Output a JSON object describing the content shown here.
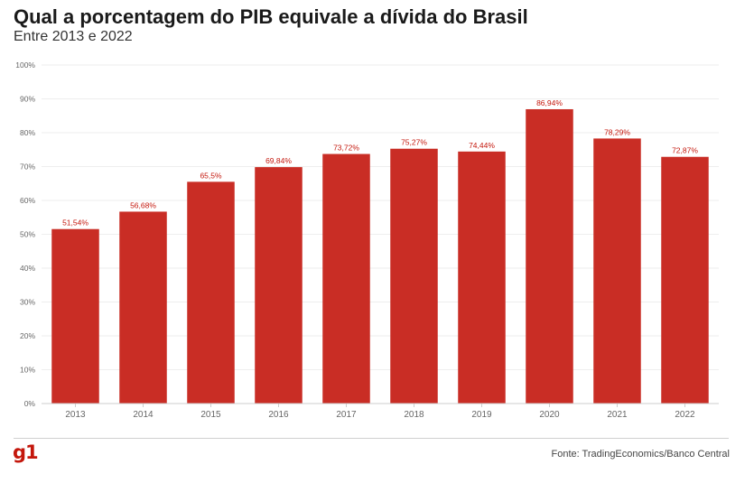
{
  "header": {
    "title": "Qual a porcentagem do PIB equivale a dívida do Brasil",
    "subtitle": "Entre 2013 e 2022"
  },
  "footer": {
    "logo_text": "g1",
    "source": "Fonte: TradingEconomics/Banco Central"
  },
  "colors": {
    "bar": "#c92d25",
    "value_label": "#c4170c",
    "grid": "#eeeeee",
    "axis": "#cccccc",
    "tick_text": "#666666",
    "logo": "#c4170c"
  },
  "chart_data": {
    "type": "bar",
    "title": "Qual a porcentagem do PIB equivale a dívida do Brasil",
    "subtitle": "Entre 2013 e 2022",
    "xlabel": "",
    "ylabel": "",
    "categories": [
      "2013",
      "2014",
      "2015",
      "2016",
      "2017",
      "2018",
      "2019",
      "2020",
      "2021",
      "2022"
    ],
    "values": [
      51.54,
      56.68,
      65.5,
      69.84,
      73.72,
      75.27,
      74.44,
      86.94,
      78.29,
      72.87
    ],
    "value_labels": [
      "51,54%",
      "56,68%",
      "65,5%",
      "69,84%",
      "73,72%",
      "75,27%",
      "74,44%",
      "86,94%",
      "78,29%",
      "72,87%"
    ],
    "ylim": [
      0,
      100
    ],
    "yticks": [
      0,
      10,
      20,
      30,
      40,
      50,
      60,
      70,
      80,
      90,
      100
    ],
    "ytick_labels": [
      "0%",
      "10%",
      "20%",
      "30%",
      "40%",
      "50%",
      "60%",
      "70%",
      "80%",
      "90%",
      "100%"
    ],
    "grid": true,
    "legend": "none"
  }
}
